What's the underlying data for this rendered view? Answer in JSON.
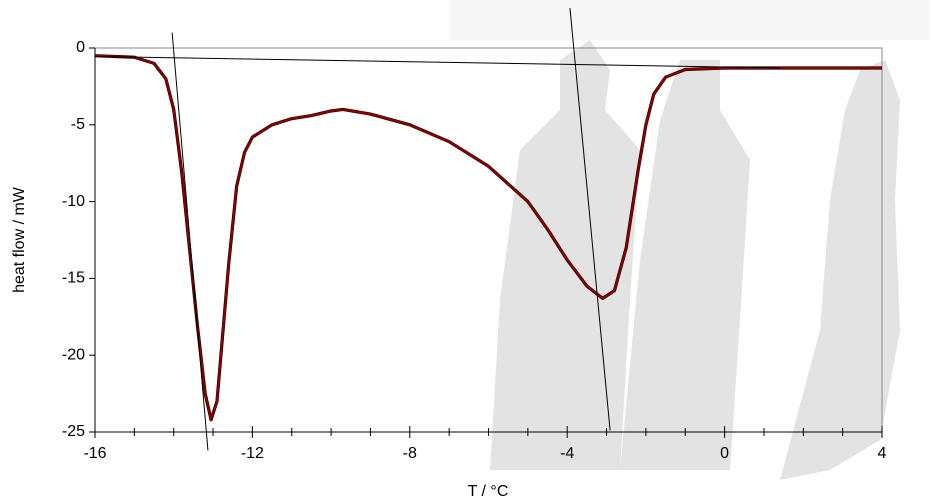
{
  "chart_data": {
    "type": "line",
    "x_label": "T / °C",
    "y_label": "heat flow / mW",
    "x": [
      -16,
      -15,
      -14.5,
      -14.2,
      -14,
      -13.8,
      -13.6,
      -13.4,
      -13.2,
      -13.05,
      -12.9,
      -12.8,
      -12.6,
      -12.4,
      -12.2,
      -12,
      -11.5,
      -11,
      -10.5,
      -10,
      -9.7,
      -9,
      -8,
      -7,
      -6,
      -5,
      -4.5,
      -4,
      -3.5,
      -3.1,
      -2.8,
      -2.5,
      -2.2,
      -2,
      -1.8,
      -1.5,
      -1,
      0,
      4
    ],
    "series": [
      {
        "color": "#8b0000",
        "values": [
          -0.5,
          -0.6,
          -1.0,
          -2,
          -4,
          -8,
          -13,
          -18,
          -22.5,
          -24.2,
          -23,
          -20,
          -14,
          -9,
          -6.8,
          -5.8,
          -5,
          -4.6,
          -4.4,
          -4.1,
          -4.0,
          -4.3,
          -5.0,
          -6.1,
          -7.7,
          -10,
          -11.8,
          -13.8,
          -15.5,
          -16.3,
          -15.8,
          -13,
          -8,
          -5,
          -3,
          -1.9,
          -1.4,
          -1.3,
          -1.3
        ]
      }
    ],
    "tangent_lines": [
      {
        "x": [
          -14.04,
          -13.13
        ],
        "y": [
          1.0,
          -26.2
        ]
      },
      {
        "x": [
          -3.93,
          -2.91
        ],
        "y": [
          2.6,
          -24.9
        ]
      },
      {
        "x": [
          -16,
          1.4
        ],
        "y": [
          -0.55,
          -1.3
        ]
      }
    ],
    "xlim": [
      -16,
      4
    ],
    "ylim": [
      -25,
      0
    ],
    "xticks": [
      -16,
      -12,
      -8,
      -4,
      0,
      4
    ],
    "yticks": [
      0,
      -5,
      -10,
      -15,
      -20,
      -25
    ]
  }
}
